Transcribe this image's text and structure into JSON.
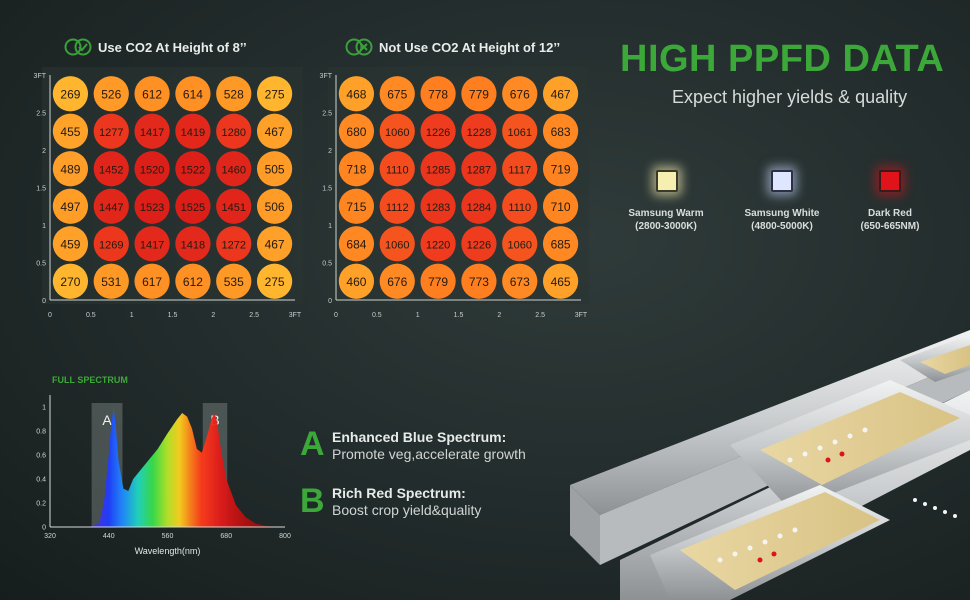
{
  "headline": "HIGH PPFD DATA",
  "subheadline": "Expect higher yields & quality",
  "leds": [
    {
      "name": "Samsung Warm",
      "range": "(2800-3000K)",
      "color": "#f7efb0"
    },
    {
      "name": "Samsung White",
      "range": "(4800-5000K)",
      "color": "#dfe6ff"
    },
    {
      "name": "Dark Red",
      "range": "(650-665NM)",
      "color": "#e0131b"
    }
  ],
  "features": [
    {
      "letter": "A",
      "title": "Enhanced Blue Spectrum:",
      "text": "Promote veg,accelerate growth"
    },
    {
      "letter": "B",
      "title": "Rich Red Spectrum:",
      "text": "Boost crop yield&quality"
    }
  ],
  "icons": {
    "co2_use": "co2-check-icon",
    "co2_not_use": "co2-cross-icon"
  },
  "chart_data": [
    {
      "type": "heatmap",
      "title": "Use CO2  At Height of 8’’",
      "x_ticks": [
        "0",
        "0.5",
        "1",
        "1.5",
        "2",
        "2.5",
        "3FT"
      ],
      "y_ticks": [
        "0",
        "0.5",
        "1",
        "1.5",
        "2",
        "2.5",
        "3FT"
      ],
      "rows": [
        [
          269,
          526,
          612,
          614,
          528,
          275
        ],
        [
          455,
          1277,
          1417,
          1419,
          1280,
          467
        ],
        [
          489,
          1452,
          1520,
          1522,
          1460,
          505
        ],
        [
          497,
          1447,
          1523,
          1525,
          1451,
          506
        ],
        [
          459,
          1269,
          1417,
          1418,
          1272,
          467
        ],
        [
          270,
          531,
          617,
          612,
          535,
          275
        ]
      ]
    },
    {
      "type": "heatmap",
      "title": "Not Use CO2  At Height of 12’’",
      "x_ticks": [
        "0",
        "0.5",
        "1",
        "1.5",
        "2",
        "2.5",
        "3FT"
      ],
      "y_ticks": [
        "0",
        "0.5",
        "1",
        "1.5",
        "2",
        "2.5",
        "3FT"
      ],
      "rows": [
        [
          468,
          675,
          778,
          779,
          676,
          467
        ],
        [
          680,
          1060,
          1226,
          1228,
          1061,
          683
        ],
        [
          718,
          1110,
          1285,
          1287,
          1117,
          719
        ],
        [
          715,
          1112,
          1283,
          1284,
          1110,
          710
        ],
        [
          684,
          1060,
          1220,
          1226,
          1060,
          685
        ],
        [
          460,
          676,
          779,
          773,
          673,
          465
        ]
      ]
    },
    {
      "type": "area",
      "title": "FULL SPECTRUM",
      "xlabel": "Wavelength(nm)",
      "x_ticks": [
        320,
        440,
        560,
        680,
        800
      ],
      "y_ticks": [
        0,
        0.2,
        0.4,
        0.6,
        0.8,
        1
      ],
      "xlim": [
        320,
        800
      ],
      "ylim": [
        0,
        1.1
      ],
      "x": [
        400,
        420,
        430,
        440,
        445,
        450,
        455,
        460,
        470,
        480,
        490,
        500,
        520,
        540,
        560,
        580,
        590,
        600,
        610,
        620,
        630,
        640,
        650,
        655,
        660,
        670,
        680,
        700,
        720,
        740,
        760,
        780
      ],
      "y": [
        0,
        0.03,
        0.2,
        0.6,
        0.85,
        1.0,
        0.8,
        0.55,
        0.32,
        0.3,
        0.4,
        0.45,
        0.55,
        0.65,
        0.78,
        0.9,
        0.95,
        0.92,
        0.82,
        0.65,
        0.62,
        0.75,
        0.9,
        0.95,
        0.9,
        0.62,
        0.4,
        0.18,
        0.08,
        0.03,
        0.01,
        0
      ],
      "bands": [
        {
          "label": "A",
          "from": 405,
          "to": 468
        },
        {
          "label": "B",
          "from": 632,
          "to": 682
        }
      ]
    }
  ]
}
